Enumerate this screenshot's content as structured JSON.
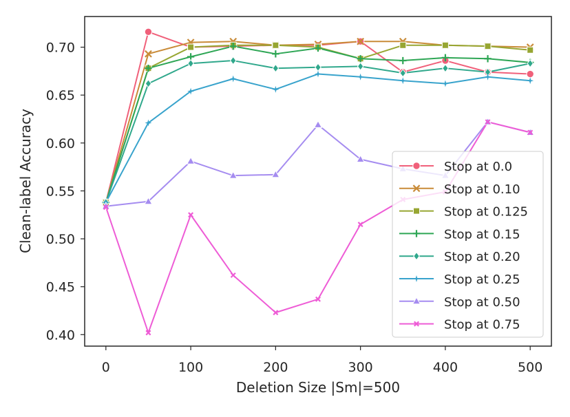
{
  "chart_data": {
    "type": "line",
    "title": "",
    "xlabel": "Deletion Size |Sm|=500",
    "ylabel": "Clean-label Accuracy",
    "xlim": [
      -25,
      525
    ],
    "ylim": [
      0.388,
      0.732
    ],
    "xticks": [
      0,
      100,
      200,
      300,
      400,
      500
    ],
    "yticks": [
      0.4,
      0.45,
      0.5,
      0.55,
      0.6,
      0.65,
      0.7
    ],
    "ytick_labels": [
      "0.40",
      "0.45",
      "0.50",
      "0.55",
      "0.60",
      "0.65",
      "0.70"
    ],
    "xtick_labels": [
      "0",
      "100",
      "200",
      "300",
      "400",
      "500"
    ],
    "grid": false,
    "legend_position": "lower-right",
    "x": [
      0,
      50,
      100,
      150,
      200,
      250,
      300,
      350,
      400,
      450,
      500
    ],
    "series": [
      {
        "name": "Stop at 0.0",
        "color": "#f0607a",
        "marker": "circle",
        "values": [
          0.538,
          0.716,
          0.7,
          0.701,
          0.702,
          0.702,
          0.706,
          0.674,
          0.686,
          0.674,
          0.672
        ]
      },
      {
        "name": "Stop at 0.10",
        "color": "#c98b38",
        "marker": "x",
        "values": [
          0.538,
          0.693,
          0.705,
          0.706,
          0.702,
          0.703,
          0.706,
          0.706,
          0.702,
          0.701,
          0.7
        ]
      },
      {
        "name": "Stop at 0.125",
        "color": "#97a632",
        "marker": "square",
        "values": [
          0.538,
          0.678,
          0.7,
          0.702,
          0.702,
          0.7,
          0.688,
          0.702,
          0.702,
          0.701,
          0.697
        ]
      },
      {
        "name": "Stop at 0.15",
        "color": "#2ea655",
        "marker": "plus",
        "values": [
          0.538,
          0.678,
          0.69,
          0.701,
          0.693,
          0.699,
          0.688,
          0.686,
          0.689,
          0.688,
          0.684
        ]
      },
      {
        "name": "Stop at 0.20",
        "color": "#30a88c",
        "marker": "diamond",
        "values": [
          0.538,
          0.662,
          0.683,
          0.686,
          0.678,
          0.679,
          0.68,
          0.673,
          0.678,
          0.674,
          0.683
        ]
      },
      {
        "name": "Stop at 0.25",
        "color": "#38a3cc",
        "marker": "star",
        "values": [
          0.538,
          0.621,
          0.654,
          0.667,
          0.656,
          0.672,
          0.669,
          0.665,
          0.662,
          0.669,
          0.665
        ]
      },
      {
        "name": "Stop at 0.50",
        "color": "#a58cf0",
        "marker": "triangle",
        "values": [
          0.534,
          0.539,
          0.581,
          0.566,
          0.567,
          0.619,
          0.583,
          0.573,
          0.566,
          0.622,
          0.611
        ]
      },
      {
        "name": "Stop at 0.75",
        "color": "#ee5cd6",
        "marker": "smallx",
        "values": [
          0.533,
          0.402,
          0.525,
          0.462,
          0.423,
          0.437,
          0.515,
          0.541,
          0.549,
          0.622,
          0.611
        ]
      }
    ]
  }
}
